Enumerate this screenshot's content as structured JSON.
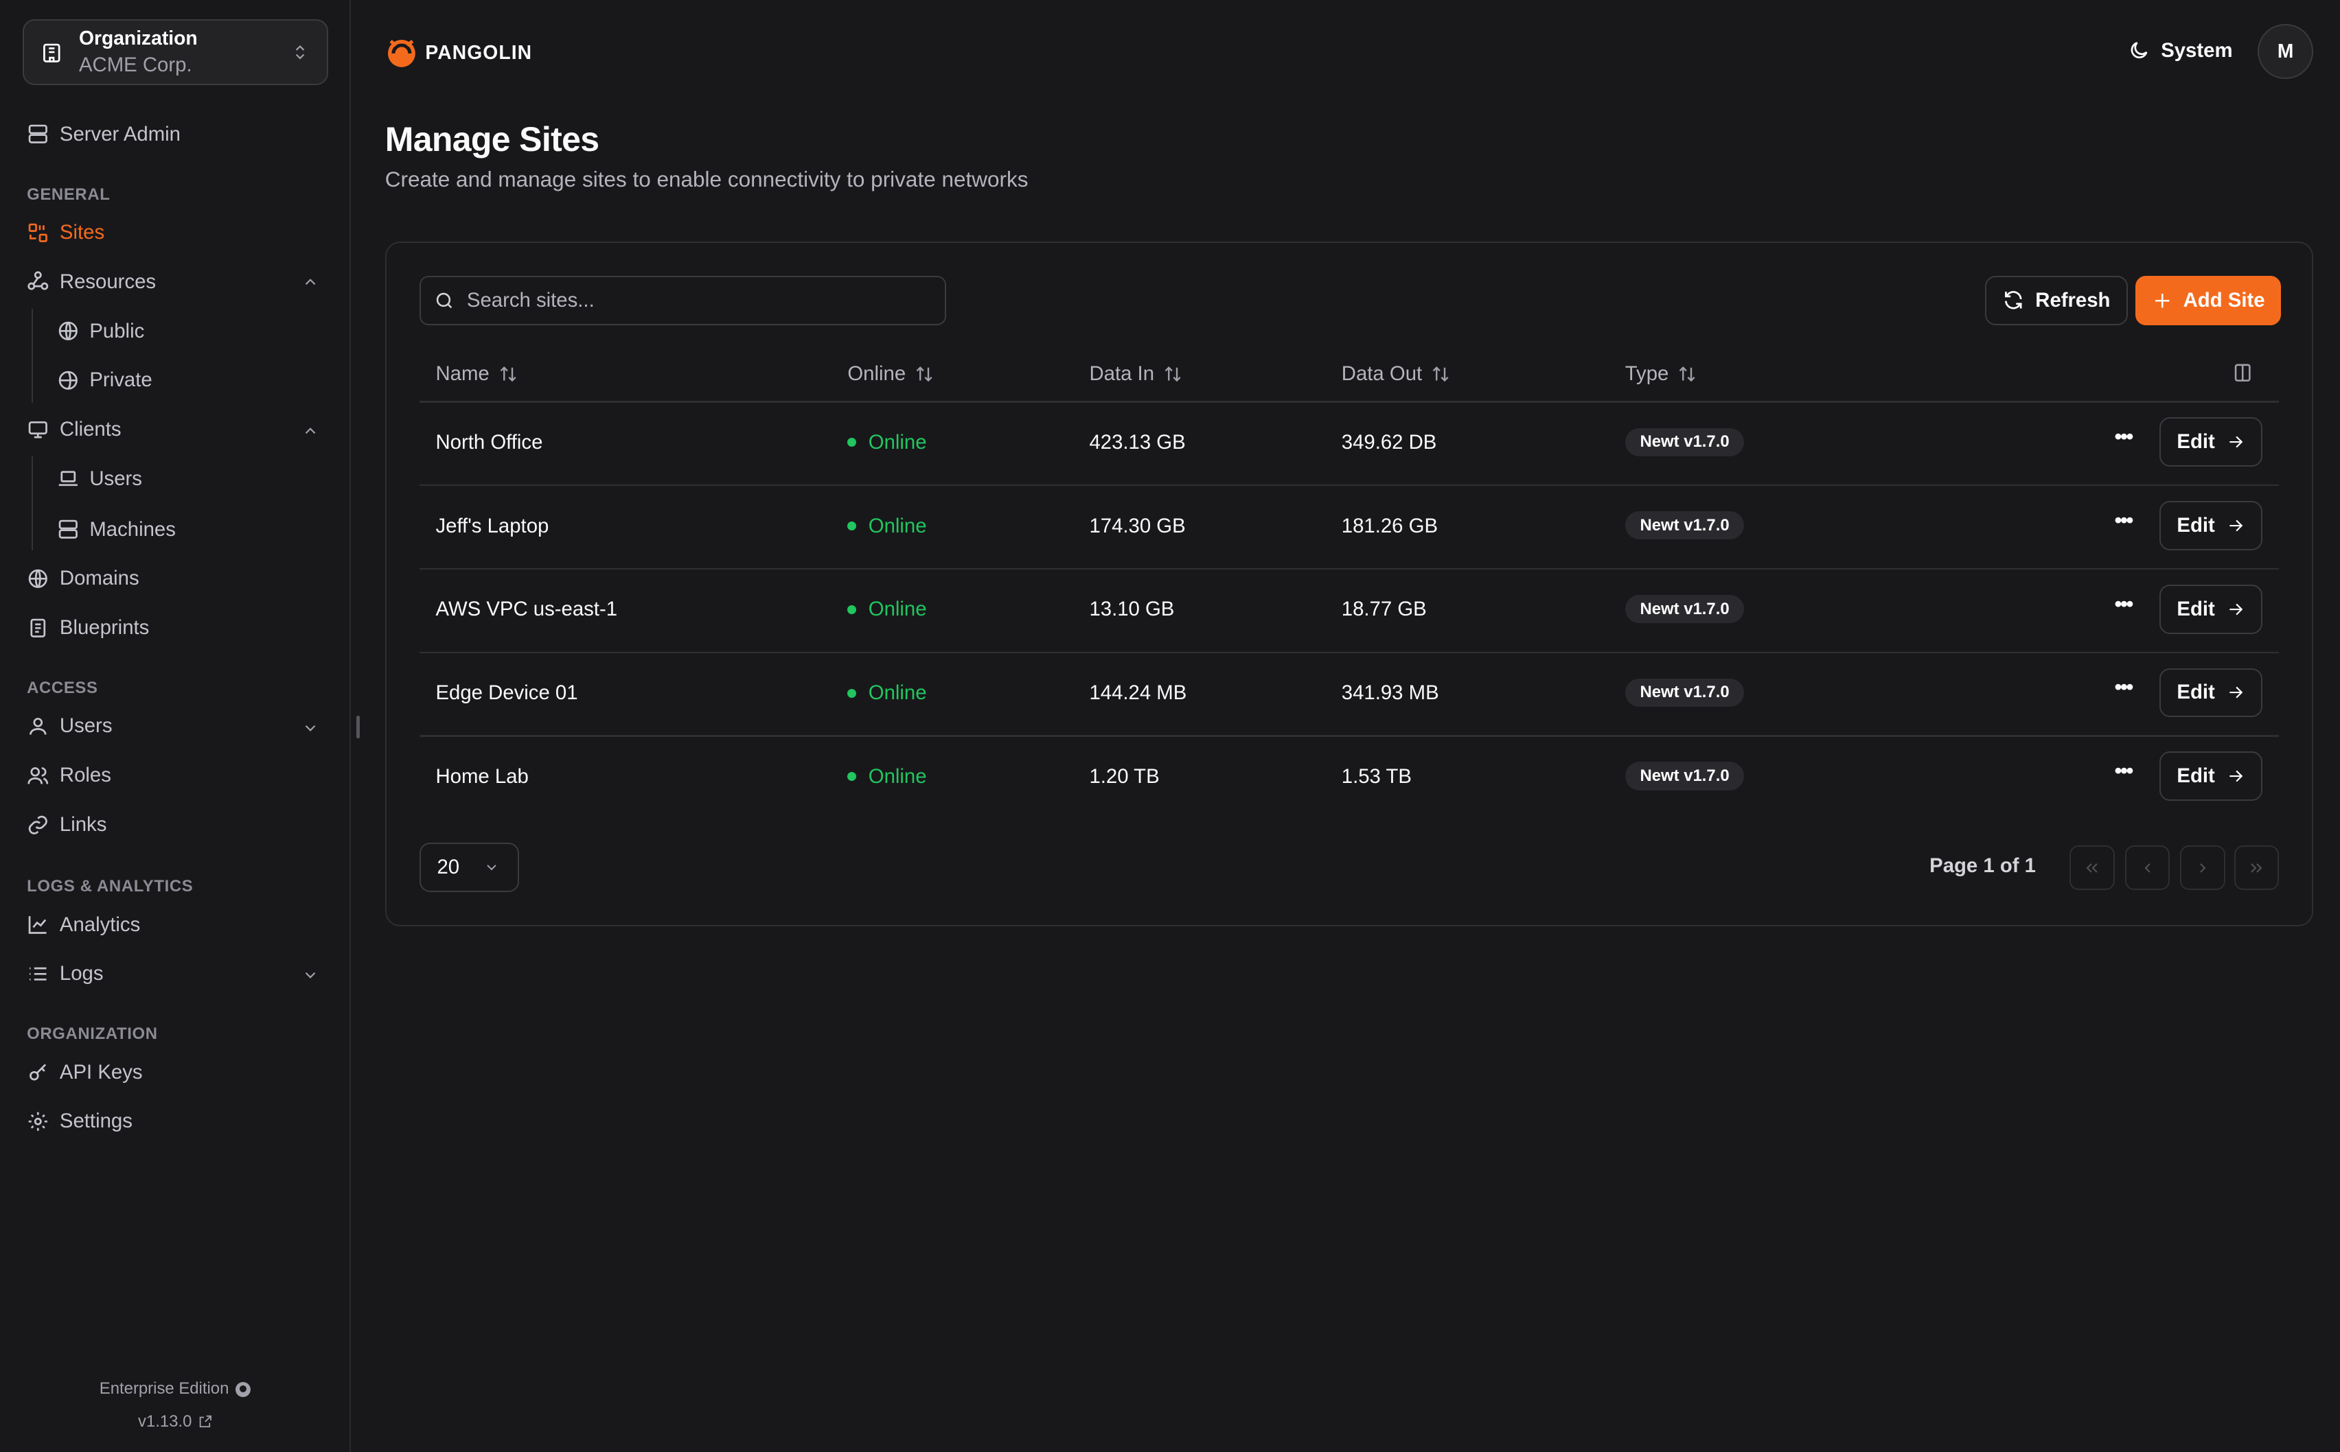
{
  "org": {
    "label": "Organization",
    "name": "ACME Corp."
  },
  "sidebar": {
    "server_admin": "Server Admin",
    "sections": {
      "general": "GENERAL",
      "access": "ACCESS",
      "logs": "LOGS & ANALYTICS",
      "organization": "ORGANIZATION"
    },
    "items": {
      "sites": "Sites",
      "resources": "Resources",
      "public": "Public",
      "private": "Private",
      "clients": "Clients",
      "users_clients": "Users",
      "machines": "Machines",
      "domains": "Domains",
      "blueprints": "Blueprints",
      "users": "Users",
      "roles": "Roles",
      "links": "Links",
      "analytics": "Analytics",
      "logs": "Logs",
      "api_keys": "API Keys",
      "settings": "Settings"
    },
    "footer": {
      "edition": "Enterprise Edition",
      "version": "v1.13.0"
    }
  },
  "header": {
    "brand": "PANGOLIN",
    "theme": "System",
    "avatar": "M"
  },
  "page": {
    "title": "Manage Sites",
    "subtitle": "Create and manage sites to enable connectivity to private networks"
  },
  "toolbar": {
    "search_placeholder": "Search sites...",
    "refresh": "Refresh",
    "add": "Add Site"
  },
  "table": {
    "columns": [
      "Name",
      "Online",
      "Data In",
      "Data Out",
      "Type"
    ],
    "rows": [
      {
        "name": "North Office",
        "status": "Online",
        "data_in": "423.13 GB",
        "data_out": "349.62 DB",
        "type": "Newt v1.7.0",
        "action": "Edit"
      },
      {
        "name": "Jeff's Laptop",
        "status": "Online",
        "data_in": "174.30 GB",
        "data_out": "181.26 GB",
        "type": "Newt v1.7.0",
        "action": "Edit"
      },
      {
        "name": "AWS VPC us-east-1",
        "status": "Online",
        "data_in": "13.10 GB",
        "data_out": "18.77 GB",
        "type": "Newt v1.7.0",
        "action": "Edit"
      },
      {
        "name": "Edge Device 01",
        "status": "Online",
        "data_in": "144.24 MB",
        "data_out": "341.93 MB",
        "type": "Newt v1.7.0",
        "action": "Edit"
      },
      {
        "name": "Home Lab",
        "status": "Online",
        "data_in": "1.20 TB",
        "data_out": "1.53 TB",
        "type": "Newt v1.7.0",
        "action": "Edit"
      }
    ]
  },
  "pagination": {
    "page_size": "20",
    "info": "Page 1 of 1"
  },
  "colors": {
    "accent": "#f46a1d",
    "online": "#22c55e",
    "background": "#18181b"
  }
}
